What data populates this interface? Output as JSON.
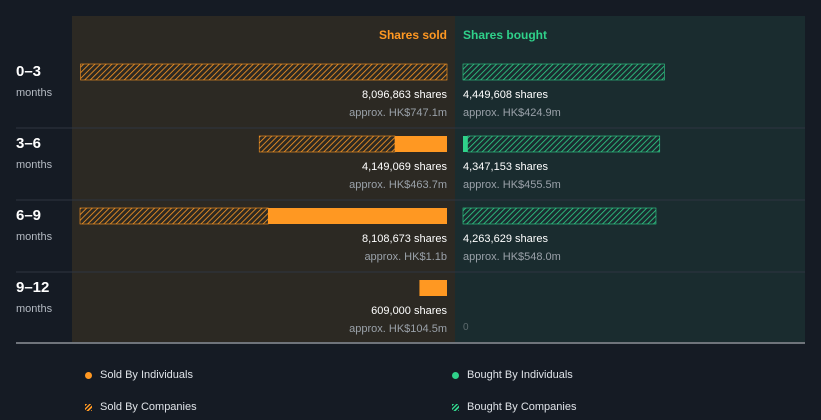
{
  "colors": {
    "sold": "#ff9822",
    "bought": "#2fd18a",
    "sold_panel": "#2c2923",
    "bought_panel": "#1a2c2f",
    "background": "#151b24"
  },
  "chart_data": {
    "type": "bar",
    "headers": {
      "sold": "Shares sold",
      "bought": "Shares bought"
    },
    "max_value": 8108673,
    "rows": [
      {
        "period": "0–3",
        "unit": "months",
        "sold": {
          "individuals": 0,
          "companies": 8096863,
          "label": "8,096,863 shares",
          "approx": "approx. HK$747.1m"
        },
        "bought": {
          "individuals": 0,
          "companies": 4449608,
          "label": "4,449,608 shares",
          "approx": "approx. HK$424.9m"
        }
      },
      {
        "period": "3–6",
        "unit": "months",
        "sold": {
          "individuals": 1150000,
          "companies": 2999069,
          "label": "4,149,069 shares",
          "approx": "approx. HK$463.7m"
        },
        "bought": {
          "individuals": 100000,
          "companies": 4247153,
          "label": "4,347,153 shares",
          "approx": "approx. HK$455.5m"
        }
      },
      {
        "period": "6–9",
        "unit": "months",
        "sold": {
          "individuals": 3950000,
          "companies": 4158673,
          "label": "8,108,673 shares",
          "approx": "approx. HK$1.1b"
        },
        "bought": {
          "individuals": 0,
          "companies": 4263629,
          "label": "4,263,629 shares",
          "approx": "approx. HK$548.0m"
        }
      },
      {
        "period": "9–12",
        "unit": "months",
        "sold": {
          "individuals": 609000,
          "companies": 0,
          "label": "609,000 shares",
          "approx": "approx. HK$104.5m"
        },
        "bought": {
          "individuals": 0,
          "companies": 0,
          "label": "0",
          "approx": ""
        }
      }
    ],
    "legend": [
      {
        "name": "Sold By Individuals",
        "style": "dot",
        "color": "#ff9822"
      },
      {
        "name": "Bought By Individuals",
        "style": "dot",
        "color": "#2fd18a"
      },
      {
        "name": "Sold By Companies",
        "style": "hatch",
        "color": "#ff9822"
      },
      {
        "name": "Bought By Companies",
        "style": "hatch",
        "color": "#2fd18a"
      }
    ]
  }
}
